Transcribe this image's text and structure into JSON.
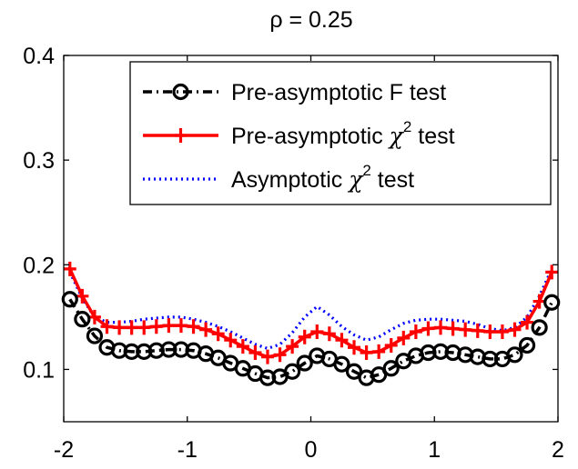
{
  "chart_data": {
    "type": "line",
    "title": "ρ = 0.25",
    "xlabel": "",
    "ylabel": "",
    "xlim": [
      -2,
      2
    ],
    "ylim": [
      0.05,
      0.4
    ],
    "xticks": [
      "-2",
      "-1",
      "0",
      "1",
      "2"
    ],
    "xtick_values": [
      -2,
      -1,
      0,
      1,
      2
    ],
    "yticks": [
      "0.1",
      "0.2",
      "0.3",
      "0.4"
    ],
    "ytick_values": [
      0.1,
      0.2,
      0.3,
      0.4
    ],
    "grid": false,
    "legend_position": "top-right",
    "x": [
      -1.95,
      -1.85,
      -1.75,
      -1.65,
      -1.55,
      -1.45,
      -1.35,
      -1.25,
      -1.15,
      -1.05,
      -0.95,
      -0.85,
      -0.75,
      -0.65,
      -0.55,
      -0.45,
      -0.35,
      -0.25,
      -0.15,
      -0.05,
      0.05,
      0.15,
      0.25,
      0.35,
      0.45,
      0.55,
      0.65,
      0.75,
      0.85,
      0.95,
      1.05,
      1.15,
      1.25,
      1.35,
      1.45,
      1.55,
      1.65,
      1.75,
      1.85,
      1.95
    ],
    "series": [
      {
        "name": "Pre-asymptotic F test",
        "color": "#000000",
        "style": "dashdot",
        "marker": "circle",
        "values": [
          0.167,
          0.148,
          0.132,
          0.121,
          0.118,
          0.117,
          0.117,
          0.118,
          0.119,
          0.119,
          0.118,
          0.115,
          0.111,
          0.106,
          0.101,
          0.096,
          0.092,
          0.093,
          0.098,
          0.106,
          0.113,
          0.11,
          0.105,
          0.098,
          0.092,
          0.095,
          0.101,
          0.108,
          0.113,
          0.116,
          0.117,
          0.116,
          0.114,
          0.112,
          0.11,
          0.11,
          0.114,
          0.123,
          0.14,
          0.164
        ]
      },
      {
        "name": "Pre-asymptotic χ² test",
        "color": "#ff0000",
        "style": "solid",
        "marker": "plus",
        "values": [
          0.196,
          0.17,
          0.15,
          0.141,
          0.14,
          0.14,
          0.14,
          0.141,
          0.142,
          0.142,
          0.141,
          0.138,
          0.134,
          0.128,
          0.122,
          0.116,
          0.112,
          0.114,
          0.122,
          0.131,
          0.136,
          0.134,
          0.128,
          0.121,
          0.116,
          0.117,
          0.123,
          0.13,
          0.136,
          0.139,
          0.14,
          0.139,
          0.138,
          0.137,
          0.136,
          0.136,
          0.138,
          0.145,
          0.165,
          0.193
        ]
      },
      {
        "name": "Asymptotic χ² test",
        "color": "#0000ff",
        "style": "dotted",
        "marker": "none",
        "values": [
          0.193,
          0.168,
          0.15,
          0.145,
          0.145,
          0.146,
          0.148,
          0.149,
          0.15,
          0.15,
          0.148,
          0.145,
          0.141,
          0.136,
          0.13,
          0.124,
          0.12,
          0.124,
          0.135,
          0.15,
          0.16,
          0.152,
          0.141,
          0.133,
          0.128,
          0.131,
          0.138,
          0.144,
          0.147,
          0.148,
          0.148,
          0.147,
          0.146,
          0.143,
          0.139,
          0.137,
          0.14,
          0.15,
          0.17,
          0.196
        ]
      }
    ],
    "legend": {
      "entries": [
        {
          "main": "Pre-asymptotic F test",
          "chi": "",
          "sup": "",
          "rest": ""
        },
        {
          "main": "Pre-asymptotic ",
          "chi": "χ",
          "sup": "2",
          "rest": " test"
        },
        {
          "main": "Asymptotic ",
          "chi": "χ",
          "sup": "2",
          "rest": " test"
        }
      ]
    }
  }
}
